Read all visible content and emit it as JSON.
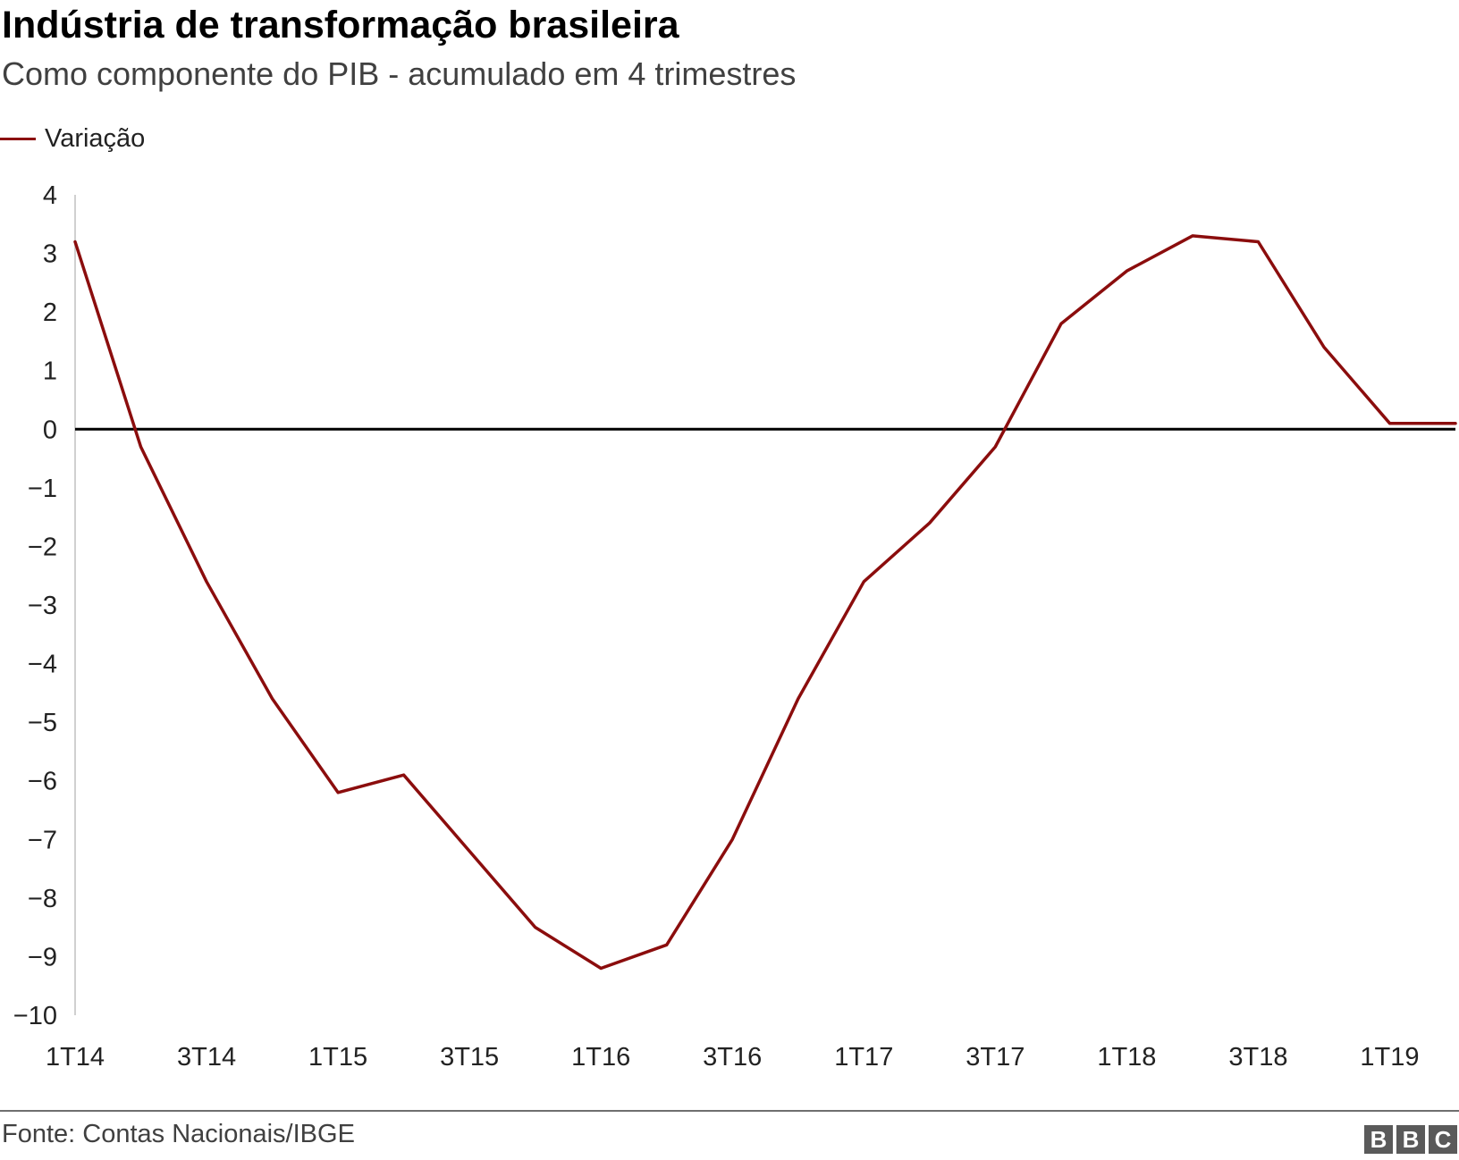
{
  "title": "Indústria de transformação brasileira",
  "subtitle": "Como componente do PIB - acumulado em 4 trimestres",
  "source": "Fonte: Contas Nacionais/IBGE",
  "logo": "BBC",
  "colors": {
    "series": "#8b0d0d",
    "zero_line": "#000000",
    "axis": "#d0d0d0"
  },
  "chart_data": {
    "type": "line",
    "title": "Indústria de transformação brasileira",
    "subtitle": "Como componente do PIB - acumulado em 4 trimestres",
    "xlabel": "",
    "ylabel": "",
    "ylim": [
      -10,
      4
    ],
    "yticks": [
      "4",
      "3",
      "2",
      "1",
      "0",
      "−1",
      "−2",
      "−3",
      "−4",
      "−5",
      "−6",
      "−7",
      "−8",
      "−9",
      "−10"
    ],
    "yticks_values": [
      4,
      3,
      2,
      1,
      0,
      -1,
      -2,
      -3,
      -4,
      -5,
      -6,
      -7,
      -8,
      -9,
      -10
    ],
    "grid": false,
    "legend_position": "top-left",
    "categories": [
      "1T14",
      "2T14",
      "3T14",
      "4T14",
      "1T15",
      "2T15",
      "3T15",
      "4T15",
      "1T16",
      "2T16",
      "3T16",
      "4T16",
      "1T17",
      "2T17",
      "3T17",
      "4T17",
      "1T18",
      "2T18",
      "3T18",
      "4T18",
      "1T19",
      "2T19"
    ],
    "xtick_labels": [
      "1T14",
      "3T14",
      "1T15",
      "3T15",
      "1T16",
      "3T16",
      "1T17",
      "3T17",
      "1T18",
      "3T18",
      "1T19"
    ],
    "series": [
      {
        "name": "Variação",
        "values": [
          3.2,
          -0.3,
          -2.6,
          -4.6,
          -6.2,
          -5.9,
          -7.2,
          -8.5,
          -9.2,
          -8.8,
          -7.0,
          -4.6,
          -2.6,
          -1.6,
          -0.3,
          1.8,
          2.7,
          3.3,
          3.2,
          1.4,
          0.1,
          0.1
        ]
      }
    ]
  }
}
